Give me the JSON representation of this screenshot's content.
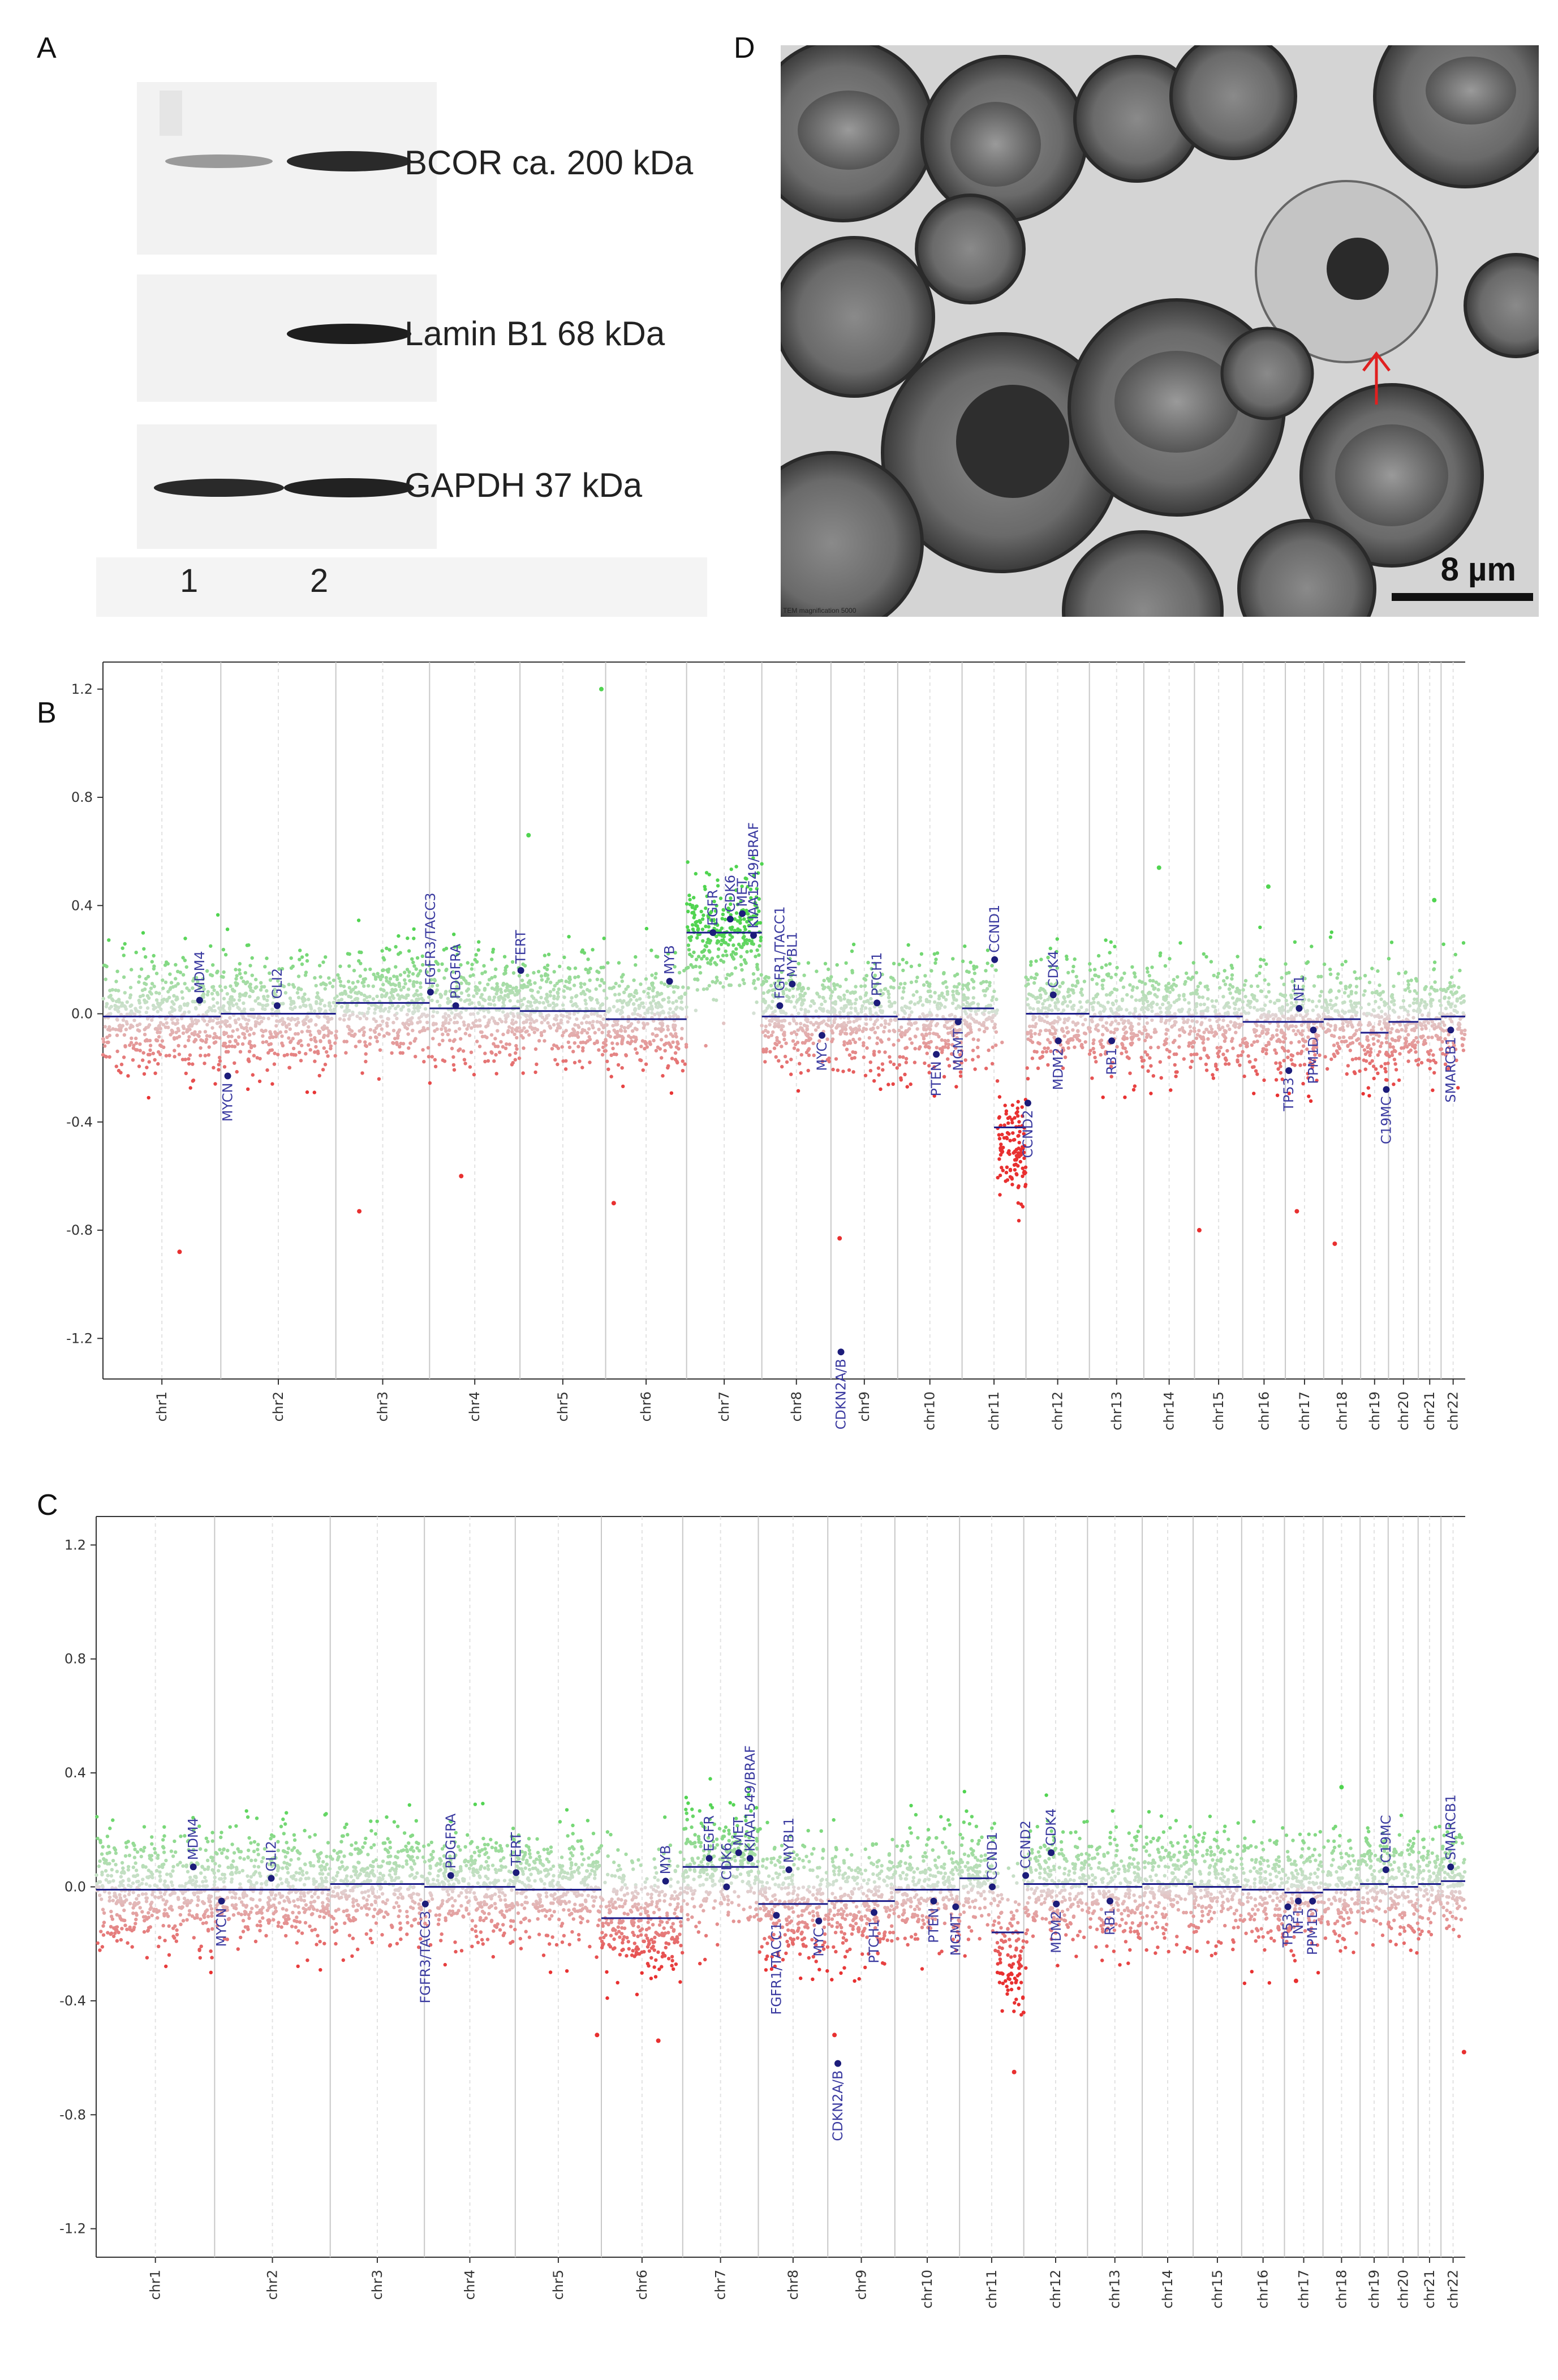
{
  "panels": {
    "a": "A",
    "b": "B",
    "c": "C",
    "d": "D"
  },
  "western_blot": {
    "bands": [
      {
        "label": "BCOR ca. 200 kDa"
      },
      {
        "label": "Lamin B1 68 kDa"
      },
      {
        "label": "GAPDH 37 kDa"
      }
    ],
    "lanes": [
      "1",
      "2"
    ]
  },
  "em_image": {
    "scale_label": "8 µm",
    "caption": "TEM magnification 5000",
    "arrow_color": "#e02020"
  },
  "colors": {
    "gain": "#4fd44f",
    "loss": "#e83030",
    "neutral": "#cccccc",
    "segment": "#1c1c8a",
    "gene": "#1c1c7a"
  },
  "chart_data": [
    {
      "panel": "B",
      "type": "scatter",
      "title": "",
      "ylim": [
        -1.35,
        1.3
      ],
      "yticks": [
        "1.2",
        "0.8",
        "0.4",
        "0.0",
        "-0.4",
        "-0.8",
        "-1.2"
      ],
      "ytick_values": [
        1.2,
        0.8,
        0.4,
        0.0,
        -0.4,
        -0.8,
        -1.2
      ],
      "chromosomes": [
        {
          "name": "chr1",
          "len": 249
        },
        {
          "name": "chr2",
          "len": 243
        },
        {
          "name": "chr3",
          "len": 198
        },
        {
          "name": "chr4",
          "len": 191
        },
        {
          "name": "chr5",
          "len": 181
        },
        {
          "name": "chr6",
          "len": 171
        },
        {
          "name": "chr7",
          "len": 159
        },
        {
          "name": "chr8",
          "len": 146
        },
        {
          "name": "chr9",
          "len": 141
        },
        {
          "name": "chr10",
          "len": 136
        },
        {
          "name": "chr11",
          "len": 135
        },
        {
          "name": "chr12",
          "len": 134
        },
        {
          "name": "chr13",
          "len": 115
        },
        {
          "name": "chr14",
          "len": 107
        },
        {
          "name": "chr15",
          "len": 102
        },
        {
          "name": "chr16",
          "len": 90
        },
        {
          "name": "chr17",
          "len": 81
        },
        {
          "name": "chr18",
          "len": 78
        },
        {
          "name": "chr19",
          "len": 59
        },
        {
          "name": "chr20",
          "len": 63
        },
        {
          "name": "chr21",
          "len": 48
        },
        {
          "name": "chr22",
          "len": 51
        }
      ],
      "segments": [
        {
          "chr": 1,
          "value": -0.01
        },
        {
          "chr": 2,
          "value": 0.0
        },
        {
          "chr": 3,
          "value": 0.04
        },
        {
          "chr": 4,
          "value": 0.02
        },
        {
          "chr": 5,
          "value": 0.01
        },
        {
          "chr": 6,
          "value": -0.02
        },
        {
          "chr": 7,
          "value": 0.3
        },
        {
          "chr": 8,
          "value": -0.01
        },
        {
          "chr": 9,
          "value": -0.01
        },
        {
          "chr": 10,
          "value": -0.02
        },
        {
          "chr": 11,
          "value": 0.02,
          "value_q": -0.42
        },
        {
          "chr": 12,
          "value": 0.0
        },
        {
          "chr": 13,
          "value": -0.01
        },
        {
          "chr": 14,
          "value": -0.01
        },
        {
          "chr": 15,
          "value": -0.01
        },
        {
          "chr": 16,
          "value": -0.03
        },
        {
          "chr": 17,
          "value": -0.03
        },
        {
          "chr": 18,
          "value": -0.02
        },
        {
          "chr": 19,
          "value": -0.07
        },
        {
          "chr": 20,
          "value": -0.03
        },
        {
          "chr": 21,
          "value": -0.02
        },
        {
          "chr": 22,
          "value": -0.01
        }
      ],
      "genes": [
        {
          "name": "MDM4",
          "chr": 1,
          "pos": 0.82,
          "value": 0.05
        },
        {
          "name": "MYCN",
          "chr": 2,
          "pos": 0.06,
          "value": -0.23
        },
        {
          "name": "GLI2",
          "chr": 2,
          "pos": 0.49,
          "value": 0.03
        },
        {
          "name": "FGFR3/TACC3",
          "chr": 4,
          "pos": 0.01,
          "value": 0.08
        },
        {
          "name": "PDGFRA",
          "chr": 4,
          "pos": 0.29,
          "value": 0.03
        },
        {
          "name": "TERT",
          "chr": 5,
          "pos": 0.01,
          "value": 0.16
        },
        {
          "name": "MYB",
          "chr": 6,
          "pos": 0.79,
          "value": 0.12
        },
        {
          "name": "EGFR",
          "chr": 7,
          "pos": 0.35,
          "value": 0.3
        },
        {
          "name": "CDK6",
          "chr": 7,
          "pos": 0.58,
          "value": 0.35
        },
        {
          "name": "MET",
          "chr": 7,
          "pos": 0.74,
          "value": 0.37
        },
        {
          "name": "KIAA1549/BRAF",
          "chr": 7,
          "pos": 0.89,
          "value": 0.29
        },
        {
          "name": "FGFR1/TACC1",
          "chr": 8,
          "pos": 0.26,
          "value": 0.03
        },
        {
          "name": "MYBL1",
          "chr": 8,
          "pos": 0.44,
          "value": 0.11
        },
        {
          "name": "MYC",
          "chr": 8,
          "pos": 0.87,
          "value": -0.08
        },
        {
          "name": "CDKN2A/B",
          "chr": 9,
          "pos": 0.15,
          "value": -1.25
        },
        {
          "name": "PTCH1",
          "chr": 9,
          "pos": 0.69,
          "value": 0.04
        },
        {
          "name": "PTEN",
          "chr": 10,
          "pos": 0.6,
          "value": -0.15
        },
        {
          "name": "MGMT",
          "chr": 10,
          "pos": 0.94,
          "value": -0.03
        },
        {
          "name": "CCND1",
          "chr": 11,
          "pos": 0.51,
          "value": 0.2
        },
        {
          "name": "CCND2",
          "chr": 12,
          "pos": 0.03,
          "value": -0.33
        },
        {
          "name": "CDK4",
          "chr": 12,
          "pos": 0.43,
          "value": 0.07
        },
        {
          "name": "MDM2",
          "chr": 12,
          "pos": 0.51,
          "value": -0.1
        },
        {
          "name": "RB1",
          "chr": 13,
          "pos": 0.41,
          "value": -0.1
        },
        {
          "name": "TP53",
          "chr": 17,
          "pos": 0.09,
          "value": -0.21
        },
        {
          "name": "NF1",
          "chr": 17,
          "pos": 0.36,
          "value": 0.02
        },
        {
          "name": "PPM1D",
          "chr": 17,
          "pos": 0.73,
          "value": -0.06
        },
        {
          "name": "C19MC",
          "chr": 19,
          "pos": 0.92,
          "value": -0.28
        },
        {
          "name": "SMARCB1",
          "chr": 22,
          "pos": 0.4,
          "value": -0.06
        }
      ],
      "outliers": [
        {
          "chr": 1,
          "pos": 0.65,
          "value": -0.88
        },
        {
          "chr": 3,
          "pos": 0.25,
          "value": -0.73
        },
        {
          "chr": 4,
          "pos": 0.35,
          "value": -0.6
        },
        {
          "chr": 5,
          "pos": 0.1,
          "value": 0.66
        },
        {
          "chr": 5,
          "pos": 0.95,
          "value": 1.2
        },
        {
          "chr": 6,
          "pos": 0.1,
          "value": -0.7
        },
        {
          "chr": 9,
          "pos": 0.13,
          "value": -0.83
        },
        {
          "chr": 14,
          "pos": 0.3,
          "value": 0.54
        },
        {
          "chr": 15,
          "pos": 0.1,
          "value": -0.8
        },
        {
          "chr": 16,
          "pos": 0.6,
          "value": 0.47
        },
        {
          "chr": 17,
          "pos": 0.3,
          "value": -0.73
        },
        {
          "chr": 18,
          "pos": 0.3,
          "value": -0.85
        },
        {
          "chr": 21,
          "pos": 0.7,
          "value": 0.42
        }
      ],
      "xlabels": [
        "chr1",
        "chr2",
        "chr3",
        "chr4",
        "chr5",
        "chr6",
        "chr7",
        "chr8",
        "chr9",
        "chr10",
        "chr11",
        "chr12",
        "chr13",
        "chr14",
        "chr15",
        "chr16",
        "chr17",
        "chr18",
        "chr19",
        "chr20",
        "chr21",
        "chr22"
      ]
    },
    {
      "panel": "C",
      "type": "scatter",
      "title": "",
      "ylim": [
        -1.3,
        1.3
      ],
      "yticks": [
        "1.2",
        "0.8",
        "0.4",
        "0.0",
        "-0.4",
        "-0.8",
        "-1.2"
      ],
      "ytick_values": [
        1.2,
        0.8,
        0.4,
        0.0,
        -0.4,
        -0.8,
        -1.2
      ],
      "chromosomes": [
        {
          "name": "chr1",
          "len": 249
        },
        {
          "name": "chr2",
          "len": 243
        },
        {
          "name": "chr3",
          "len": 198
        },
        {
          "name": "chr4",
          "len": 191
        },
        {
          "name": "chr5",
          "len": 181
        },
        {
          "name": "chr6",
          "len": 171
        },
        {
          "name": "chr7",
          "len": 159
        },
        {
          "name": "chr8",
          "len": 146
        },
        {
          "name": "chr9",
          "len": 141
        },
        {
          "name": "chr10",
          "len": 136
        },
        {
          "name": "chr11",
          "len": 135
        },
        {
          "name": "chr12",
          "len": 134
        },
        {
          "name": "chr13",
          "len": 115
        },
        {
          "name": "chr14",
          "len": 107
        },
        {
          "name": "chr15",
          "len": 102
        },
        {
          "name": "chr16",
          "len": 90
        },
        {
          "name": "chr17",
          "len": 81
        },
        {
          "name": "chr18",
          "len": 78
        },
        {
          "name": "chr19",
          "len": 59
        },
        {
          "name": "chr20",
          "len": 63
        },
        {
          "name": "chr21",
          "len": 48
        },
        {
          "name": "chr22",
          "len": 51
        }
      ],
      "segments": [
        {
          "chr": 1,
          "value": -0.01
        },
        {
          "chr": 2,
          "value": -0.01
        },
        {
          "chr": 3,
          "value": 0.01
        },
        {
          "chr": 4,
          "value": 0.0
        },
        {
          "chr": 5,
          "value": -0.01
        },
        {
          "chr": 6,
          "value": -0.11
        },
        {
          "chr": 7,
          "value": 0.07
        },
        {
          "chr": 8,
          "value": -0.06
        },
        {
          "chr": 9,
          "value": -0.05
        },
        {
          "chr": 10,
          "value": -0.01
        },
        {
          "chr": 11,
          "value": 0.03,
          "value_q": -0.16
        },
        {
          "chr": 12,
          "value": 0.01
        },
        {
          "chr": 13,
          "value": 0.0
        },
        {
          "chr": 14,
          "value": 0.01
        },
        {
          "chr": 15,
          "value": 0.0
        },
        {
          "chr": 16,
          "value": -0.01
        },
        {
          "chr": 17,
          "value": -0.02
        },
        {
          "chr": 18,
          "value": -0.01
        },
        {
          "chr": 19,
          "value": 0.01
        },
        {
          "chr": 20,
          "value": 0.0
        },
        {
          "chr": 21,
          "value": 0.01
        },
        {
          "chr": 22,
          "value": 0.02
        }
      ],
      "genes": [
        {
          "name": "MDM4",
          "chr": 1,
          "pos": 0.82,
          "value": 0.07
        },
        {
          "name": "MYCN",
          "chr": 2,
          "pos": 0.06,
          "value": -0.05
        },
        {
          "name": "GLI2",
          "chr": 2,
          "pos": 0.49,
          "value": 0.03
        },
        {
          "name": "FGFR3/TACC3",
          "chr": 4,
          "pos": 0.01,
          "value": -0.06
        },
        {
          "name": "PDGFRA",
          "chr": 4,
          "pos": 0.29,
          "value": 0.04
        },
        {
          "name": "TERT",
          "chr": 5,
          "pos": 0.01,
          "value": 0.05
        },
        {
          "name": "MYB",
          "chr": 6,
          "pos": 0.79,
          "value": 0.02
        },
        {
          "name": "EGFR",
          "chr": 7,
          "pos": 0.35,
          "value": 0.1
        },
        {
          "name": "CDK6",
          "chr": 7,
          "pos": 0.58,
          "value": 0.0
        },
        {
          "name": "MET",
          "chr": 7,
          "pos": 0.74,
          "value": 0.12
        },
        {
          "name": "KIAA1549/BRAF",
          "chr": 7,
          "pos": 0.89,
          "value": 0.1
        },
        {
          "name": "FGFR1/TACC1",
          "chr": 8,
          "pos": 0.26,
          "value": -0.1
        },
        {
          "name": "MYBL1",
          "chr": 8,
          "pos": 0.44,
          "value": 0.06
        },
        {
          "name": "MYC",
          "chr": 8,
          "pos": 0.87,
          "value": -0.12
        },
        {
          "name": "CDKN2A/B",
          "chr": 9,
          "pos": 0.15,
          "value": -0.62
        },
        {
          "name": "PTCH1",
          "chr": 9,
          "pos": 0.69,
          "value": -0.09
        },
        {
          "name": "PTEN",
          "chr": 10,
          "pos": 0.6,
          "value": -0.05
        },
        {
          "name": "MGMT",
          "chr": 10,
          "pos": 0.94,
          "value": -0.07
        },
        {
          "name": "CCND1",
          "chr": 11,
          "pos": 0.51,
          "value": 0.0
        },
        {
          "name": "CCND2",
          "chr": 12,
          "pos": 0.03,
          "value": 0.04
        },
        {
          "name": "CDK4",
          "chr": 12,
          "pos": 0.43,
          "value": 0.12
        },
        {
          "name": "MDM2",
          "chr": 12,
          "pos": 0.51,
          "value": -0.06
        },
        {
          "name": "RB1",
          "chr": 13,
          "pos": 0.41,
          "value": -0.05
        },
        {
          "name": "TP53",
          "chr": 17,
          "pos": 0.09,
          "value": -0.07
        },
        {
          "name": "NF1",
          "chr": 17,
          "pos": 0.36,
          "value": -0.05
        },
        {
          "name": "PPM1D",
          "chr": 17,
          "pos": 0.73,
          "value": -0.05
        },
        {
          "name": "C19MC",
          "chr": 19,
          "pos": 0.92,
          "value": 0.06
        },
        {
          "name": "SMARCB1",
          "chr": 22,
          "pos": 0.4,
          "value": 0.07
        }
      ],
      "outliers": [
        {
          "chr": 5,
          "pos": 0.95,
          "value": -0.52
        },
        {
          "chr": 6,
          "pos": 0.7,
          "value": -0.54
        },
        {
          "chr": 9,
          "pos": 0.1,
          "value": -0.52
        },
        {
          "chr": 11,
          "pos": 0.85,
          "value": -0.65
        },
        {
          "chr": 17,
          "pos": 0.3,
          "value": -0.33
        },
        {
          "chr": 18,
          "pos": 0.5,
          "value": 0.35
        },
        {
          "chr": 22,
          "pos": 0.95,
          "value": -0.58
        }
      ],
      "xlabels": [
        "chr1",
        "chr2",
        "chr3",
        "chr4",
        "chr5",
        "chr6",
        "chr7",
        "chr8",
        "chr9",
        "chr10",
        "chr11",
        "chr12",
        "chr13",
        "chr14",
        "chr15",
        "chr16",
        "chr17",
        "chr18",
        "chr19",
        "chr20",
        "chr21",
        "chr22"
      ]
    }
  ]
}
